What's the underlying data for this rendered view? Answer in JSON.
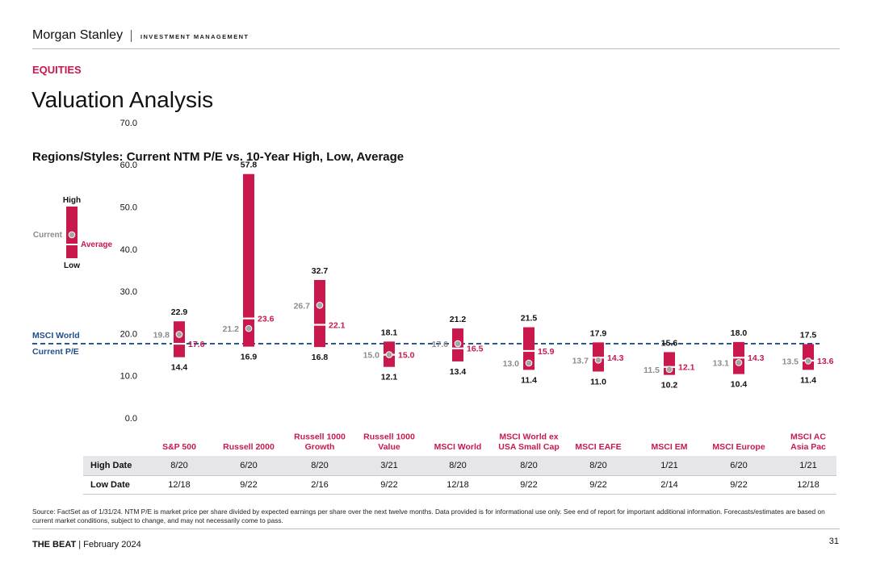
{
  "header": {
    "brand": "Morgan Stanley",
    "subbrand": "INVESTMENT MANAGEMENT",
    "section": "EQUITIES",
    "title": "Valuation Analysis",
    "subtitle": "Regions/Styles: Current NTM P/E vs. 10-Year High, Low, Average"
  },
  "colors": {
    "accent": "#c8184c",
    "muted": "#8c8c8c",
    "benchmark": "#1f4e8c",
    "marker": "#a6a6a6"
  },
  "legend": {
    "high": "High",
    "low": "Low",
    "current": "Current",
    "average": "Average"
  },
  "chart_data": {
    "type": "range",
    "title": "Regions/Styles: Current NTM P/E vs. 10-Year High, Low, Average",
    "ylim": [
      0,
      70
    ],
    "yticks": [
      "70.0",
      "60.0",
      "50.0",
      "40.0",
      "30.0",
      "20.0",
      "10.0",
      "0.0"
    ],
    "benchmark_line": {
      "label_line1": "MSCI World",
      "label_line2": "Current P/E",
      "value": 17.6
    },
    "categories": [
      "S&P 500",
      "Russell 2000",
      "Russell 1000 Growth",
      "Russell 1000 Value",
      "MSCI World",
      "MSCI World ex USA Small Cap",
      "MSCI EAFE",
      "MSCI EM",
      "MSCI Europe",
      "MSCI AC Asia Pac"
    ],
    "category_labels": [
      [
        "S&P 500"
      ],
      [
        "Russell 2000"
      ],
      [
        "Russell 1000",
        "Growth"
      ],
      [
        "Russell 1000",
        "Value"
      ],
      [
        "MSCI World"
      ],
      [
        "MSCI World ex",
        "USA Small Cap"
      ],
      [
        "MSCI EAFE"
      ],
      [
        "MSCI EM"
      ],
      [
        "MSCI Europe"
      ],
      [
        "MSCI AC",
        "Asia Pac"
      ]
    ],
    "high": [
      22.9,
      57.8,
      32.7,
      18.1,
      21.2,
      21.5,
      17.9,
      15.6,
      18.0,
      17.5
    ],
    "low": [
      14.4,
      16.9,
      16.8,
      12.1,
      13.4,
      11.4,
      11.0,
      10.2,
      10.4,
      11.4
    ],
    "average": [
      17.6,
      23.6,
      22.1,
      15.0,
      16.5,
      15.9,
      14.3,
      12.1,
      14.3,
      13.6
    ],
    "current": [
      19.8,
      21.2,
      26.7,
      15.0,
      17.6,
      13.0,
      13.7,
      11.5,
      13.1,
      13.5
    ],
    "high_labels": [
      "22.9",
      "57.8",
      "32.7",
      "18.1",
      "21.2",
      "21.5",
      "17.9",
      "15.6",
      "18.0",
      "17.5"
    ],
    "low_labels": [
      "14.4",
      "16.9",
      "16.8",
      "12.1",
      "13.4",
      "11.4",
      "11.0",
      "10.2",
      "10.4",
      "11.4"
    ],
    "average_labels": [
      "17.6",
      "23.6",
      "22.1",
      "15.0",
      "16.5",
      "15.9",
      "14.3",
      "12.1",
      "14.3",
      "13.6"
    ],
    "current_labels": [
      "19.8",
      "21.2",
      "26.7",
      "15.0",
      "17.6",
      "13.0",
      "13.7",
      "11.5",
      "13.1",
      "13.5"
    ]
  },
  "table": {
    "rows": [
      {
        "label": "High Date",
        "values": [
          "8/20",
          "6/20",
          "8/20",
          "3/21",
          "8/20",
          "8/20",
          "8/20",
          "1/21",
          "6/20",
          "1/21"
        ]
      },
      {
        "label": "Low Date",
        "values": [
          "12/18",
          "9/22",
          "2/16",
          "9/22",
          "12/18",
          "9/22",
          "9/22",
          "2/14",
          "9/22",
          "12/18"
        ]
      }
    ]
  },
  "source": "Source: FactSet as of 1/31/24. NTM P/E is market price per share divided by expected earnings per share over the next twelve months. Data provided is for informational use only. See end of report for important additional information. Forecasts/estimates are based on current market conditions, subject to change, and may not necessarily come to pass.",
  "footer": {
    "publication": "THE BEAT",
    "date": "| February 2024",
    "page": "31"
  }
}
